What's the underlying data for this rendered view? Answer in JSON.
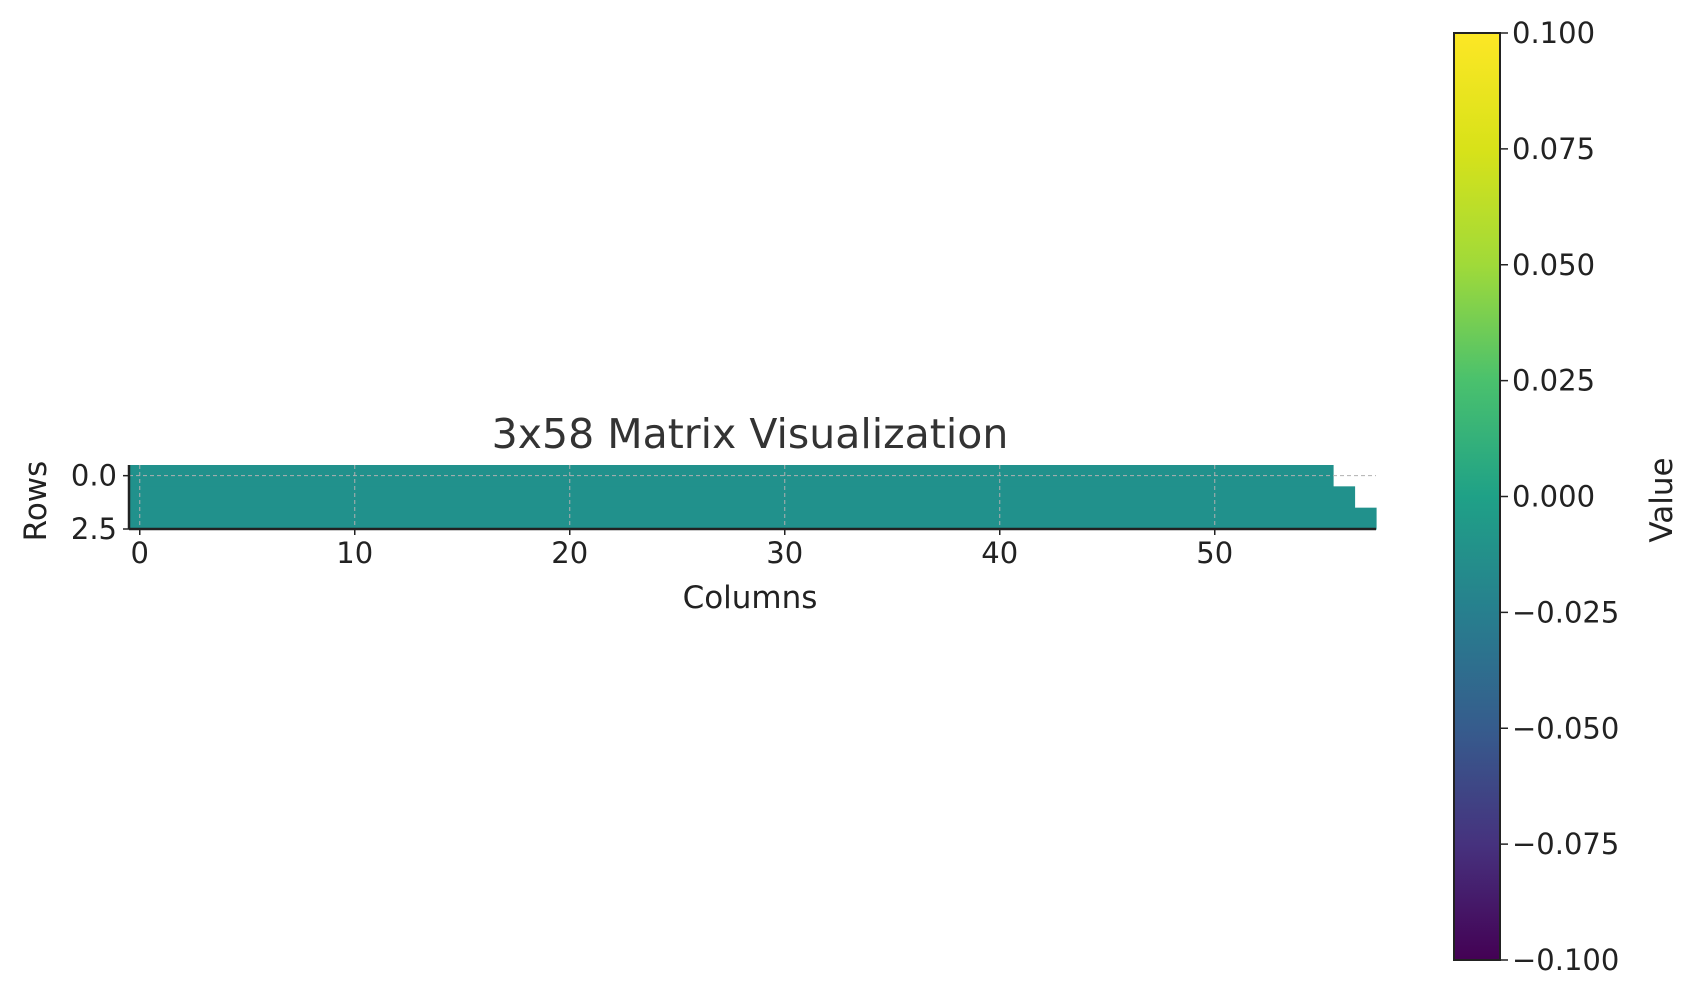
{
  "chart_data": {
    "type": "heatmap",
    "title": "3x58 Matrix Visualization",
    "xlabel": "Columns",
    "ylabel": "Rows",
    "rows": 3,
    "cols": 58,
    "cell_value": 0.0,
    "masked_cells": [
      {
        "row": 0,
        "col": 56
      },
      {
        "row": 0,
        "col": 57
      },
      {
        "row": 1,
        "col": 57
      }
    ],
    "xlim": [
      -0.5,
      57.5
    ],
    "ylim": [
      2.5,
      -0.5
    ],
    "xticks": [
      0,
      10,
      20,
      30,
      40,
      50
    ],
    "xtick_labels": [
      "0",
      "10",
      "20",
      "30",
      "40",
      "50"
    ],
    "yticks": [
      0.0,
      2.5
    ],
    "ytick_labels": [
      "0.0",
      "2.5"
    ],
    "grid": true,
    "colorbar": {
      "label": "Value",
      "colormap": "viridis",
      "vmin": -0.1,
      "vmax": 0.1,
      "ticks": [
        0.1,
        0.075,
        0.05,
        0.025,
        0.0,
        -0.025,
        -0.05,
        -0.075,
        -0.1
      ],
      "tick_labels": [
        "0.100",
        "0.075",
        "0.050",
        "0.025",
        "0.000",
        "−0.025",
        "−0.050",
        "−0.075",
        "−0.100"
      ]
    }
  },
  "colors": {
    "cell_fill": "#21918c",
    "axis": "#222222",
    "grid": "#b0b0b0"
  }
}
